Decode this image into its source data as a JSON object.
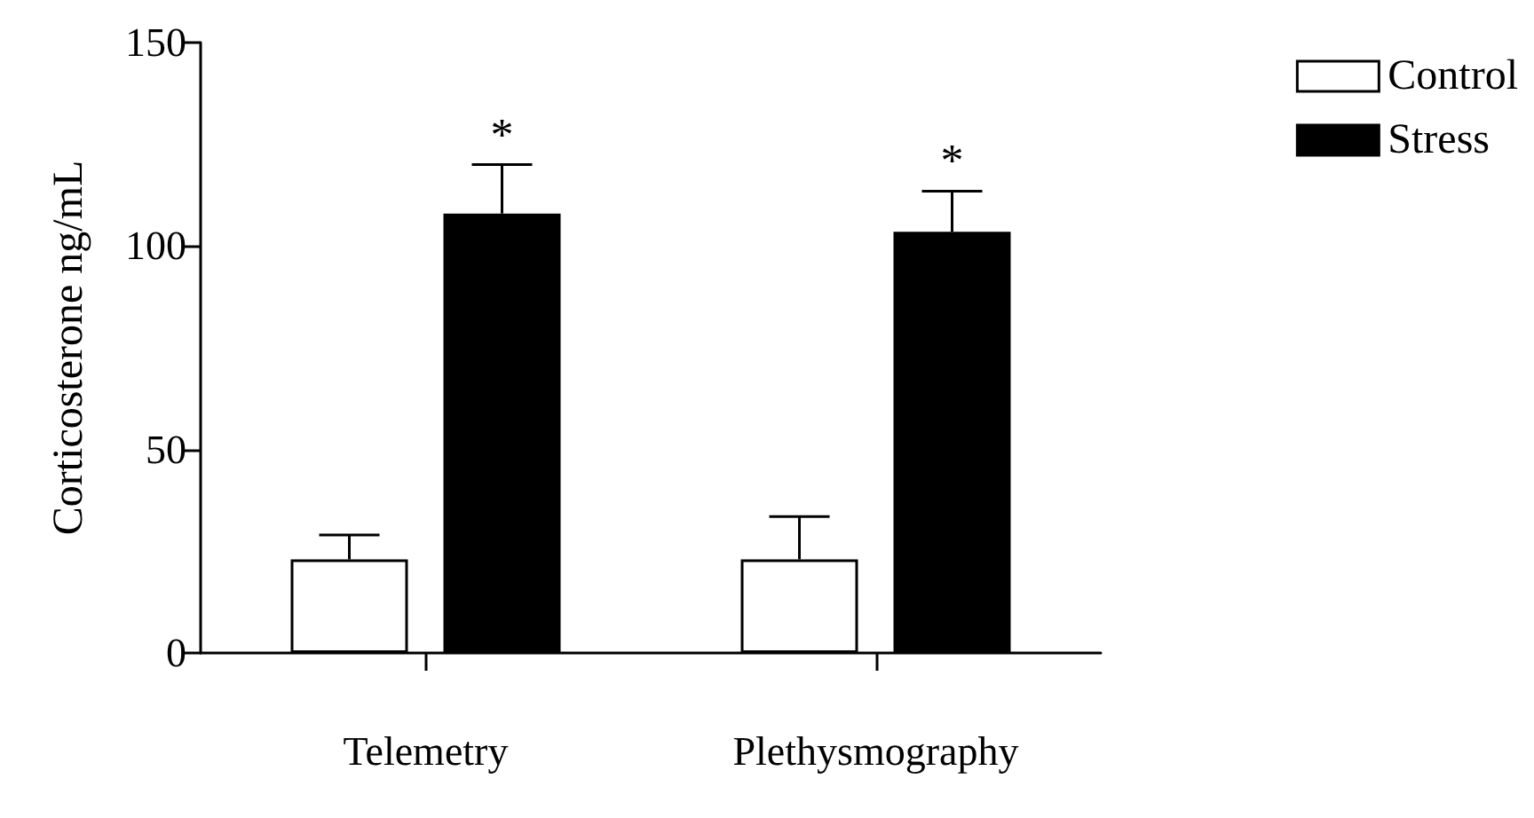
{
  "chart_data": {
    "type": "bar",
    "ylabel": "Corticosterone ng/mL",
    "categories": [
      "Telemetry",
      "Plethysmography"
    ],
    "series": [
      {
        "name": "Control",
        "color": "#ffffff",
        "values": [
          23,
          23
        ],
        "errors": [
          6,
          10.5
        ]
      },
      {
        "name": "Stress",
        "color": "#000000",
        "values": [
          108,
          103.5
        ],
        "errors": [
          12,
          10
        ]
      }
    ],
    "ylim": [
      0,
      150
    ],
    "yticks": [
      0,
      50,
      100,
      150
    ],
    "grid": false,
    "legend": "top right",
    "annotations": [
      "*",
      "*"
    ]
  }
}
